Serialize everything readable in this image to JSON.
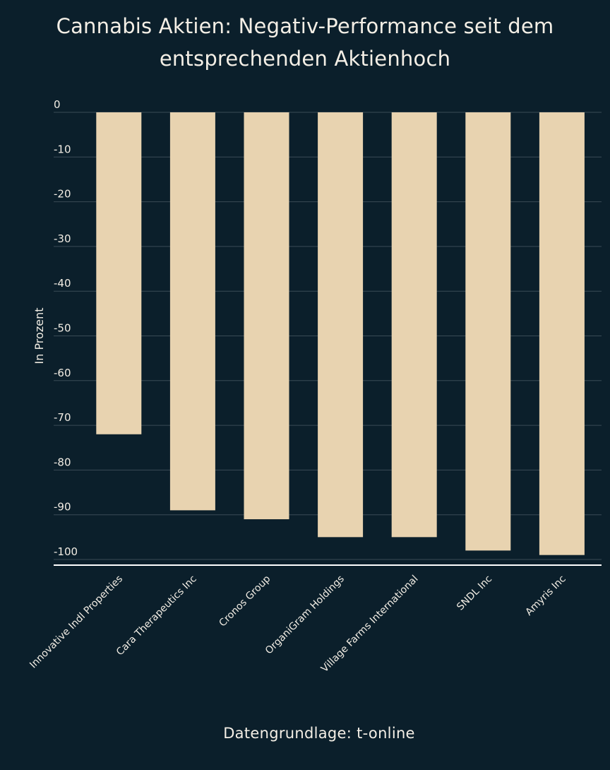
{
  "chart_data": {
    "type": "bar",
    "title": "Cannabis Aktien: Negativ-Performance seit dem entsprechenden Aktienhoch",
    "source": "Datengrundlage: t-online",
    "xlabel": "",
    "ylabel": "In Prozent",
    "categories": [
      "Innovative Indl Properties",
      "Cara Therapeutics Inc",
      "Cronos Group",
      "OrganiGram Holdings",
      "Village Farms International",
      "SNDL Inc",
      "Amyris Inc"
    ],
    "values": [
      -72,
      -89,
      -91,
      -95,
      -95,
      -98,
      -99
    ],
    "ylim": [
      -100,
      0
    ],
    "yticks": [
      0,
      -10,
      -20,
      -30,
      -40,
      -50,
      -60,
      -70,
      -80,
      -90,
      -100
    ],
    "ytick_labels": [
      "0",
      "-10",
      "-20",
      "-30",
      "-40",
      "-50",
      "-60",
      "-70",
      "-80",
      "-90",
      "-100"
    ],
    "grid": true,
    "colors": {
      "background": "#0b1f2b",
      "bar": "#e8d3b0",
      "grid": "#3a4b56",
      "axis": "#ffffff",
      "text": "#f2ede4"
    }
  }
}
